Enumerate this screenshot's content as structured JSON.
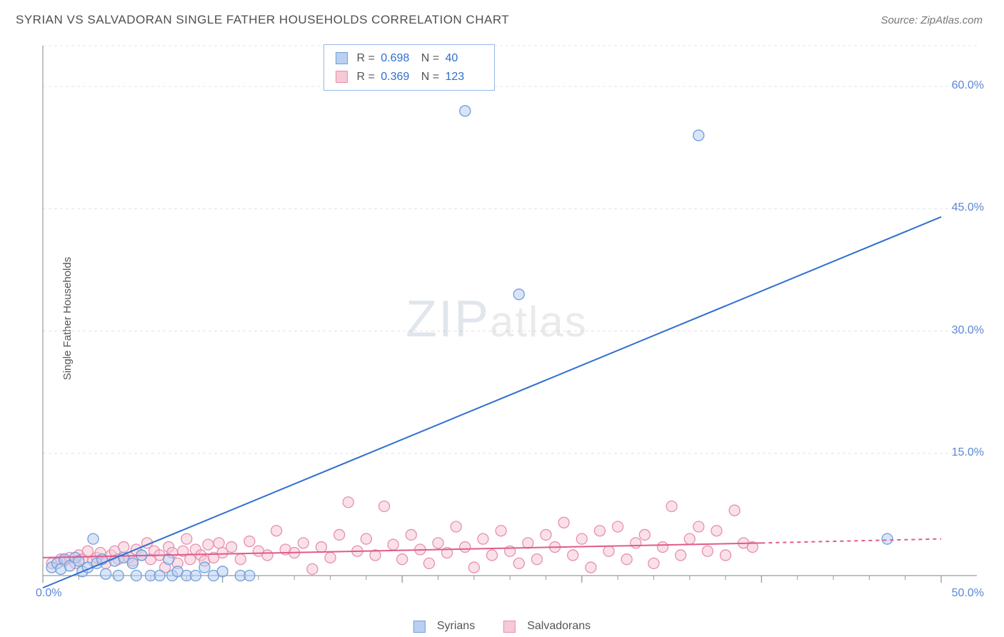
{
  "header": {
    "title": "SYRIAN VS SALVADORAN SINGLE FATHER HOUSEHOLDS CORRELATION CHART",
    "source": "Source: ZipAtlas.com"
  },
  "axes": {
    "ylabel": "Single Father Households",
    "xlim": [
      0,
      50
    ],
    "ylim": [
      0,
      65
    ],
    "ytick_values": [
      15,
      30,
      45,
      60
    ],
    "ytick_labels": [
      "15.0%",
      "30.0%",
      "45.0%",
      "60.0%"
    ],
    "xtick_values": [
      0,
      10,
      20,
      30,
      40,
      50
    ],
    "x_label_0": "0.0%",
    "x_label_50": "50.0%",
    "minor_xtick_step": 2
  },
  "styling": {
    "grid_color": "#e4e4e4",
    "axis_color": "#9a9a9a",
    "background": "#ffffff",
    "tick_label_color": "#5a87d6"
  },
  "series": {
    "syrians": {
      "label": "Syrians",
      "marker_fill": "#b9d0f0",
      "marker_stroke": "#6f9edb",
      "line_color": "#2f6fd0",
      "line_width": 2,
      "trend_start": [
        0,
        -1.5
      ],
      "trend_end": [
        50,
        44
      ],
      "dash_continue_end": [
        50,
        44
      ],
      "r_value": "0.698",
      "n_value": "40",
      "points": [
        [
          0.5,
          1.0
        ],
        [
          0.8,
          1.5
        ],
        [
          1.0,
          0.8
        ],
        [
          1.2,
          2.0
        ],
        [
          1.5,
          1.2
        ],
        [
          1.8,
          2.2
        ],
        [
          2.0,
          1.8
        ],
        [
          2.2,
          0.5
        ],
        [
          2.5,
          1.0
        ],
        [
          2.8,
          4.5
        ],
        [
          3.0,
          1.5
        ],
        [
          3.3,
          2.0
        ],
        [
          3.5,
          0.2
        ],
        [
          4.0,
          1.8
        ],
        [
          4.2,
          0.0
        ],
        [
          4.5,
          2.2
        ],
        [
          5.0,
          1.5
        ],
        [
          5.2,
          0.0
        ],
        [
          5.5,
          2.5
        ],
        [
          6.0,
          0.0
        ],
        [
          6.5,
          0.0
        ],
        [
          7.0,
          2.0
        ],
        [
          7.2,
          0.0
        ],
        [
          7.5,
          0.5
        ],
        [
          8.0,
          0.0
        ],
        [
          8.5,
          0.0
        ],
        [
          9.0,
          1.0
        ],
        [
          9.5,
          0.0
        ],
        [
          10.0,
          0.5
        ],
        [
          11.0,
          0.0
        ],
        [
          11.5,
          0.0
        ],
        [
          23.5,
          57.0
        ],
        [
          26.5,
          34.5
        ],
        [
          36.5,
          54.0
        ],
        [
          47.0,
          4.5
        ]
      ]
    },
    "salvadorans": {
      "label": "Salvadorans",
      "marker_fill": "#f6c9d6",
      "marker_stroke": "#e68fb0",
      "line_color": "#e05b8b",
      "line_width": 2,
      "trend_start": [
        0,
        2.2
      ],
      "trend_end": [
        40,
        4.0
      ],
      "dash_continue_end": [
        50,
        4.5
      ],
      "r_value": "0.369",
      "n_value": "123",
      "points": [
        [
          0.5,
          1.5
        ],
        [
          1.0,
          2.0
        ],
        [
          1.2,
          1.8
        ],
        [
          1.5,
          2.2
        ],
        [
          1.8,
          1.5
        ],
        [
          2.0,
          2.5
        ],
        [
          2.2,
          2.0
        ],
        [
          2.5,
          3.0
        ],
        [
          2.8,
          1.8
        ],
        [
          3.0,
          2.2
        ],
        [
          3.2,
          2.8
        ],
        [
          3.5,
          1.5
        ],
        [
          3.8,
          2.5
        ],
        [
          4.0,
          3.0
        ],
        [
          4.2,
          2.0
        ],
        [
          4.5,
          3.5
        ],
        [
          4.8,
          2.2
        ],
        [
          5.0,
          1.8
        ],
        [
          5.2,
          3.2
        ],
        [
          5.5,
          2.5
        ],
        [
          5.8,
          4.0
        ],
        [
          6.0,
          2.0
        ],
        [
          6.2,
          3.0
        ],
        [
          6.5,
          2.5
        ],
        [
          6.8,
          1.0
        ],
        [
          7.0,
          3.5
        ],
        [
          7.2,
          2.8
        ],
        [
          7.5,
          1.5
        ],
        [
          7.8,
          3.0
        ],
        [
          8.0,
          4.5
        ],
        [
          8.2,
          2.0
        ],
        [
          8.5,
          3.2
        ],
        [
          8.8,
          2.5
        ],
        [
          9.0,
          1.8
        ],
        [
          9.2,
          3.8
        ],
        [
          9.5,
          2.2
        ],
        [
          9.8,
          4.0
        ],
        [
          10.0,
          2.8
        ],
        [
          10.5,
          3.5
        ],
        [
          11.0,
          2.0
        ],
        [
          11.5,
          4.2
        ],
        [
          12.0,
          3.0
        ],
        [
          12.5,
          2.5
        ],
        [
          13.0,
          5.5
        ],
        [
          13.5,
          3.2
        ],
        [
          14.0,
          2.8
        ],
        [
          14.5,
          4.0
        ],
        [
          15.0,
          0.8
        ],
        [
          15.5,
          3.5
        ],
        [
          16.0,
          2.2
        ],
        [
          16.5,
          5.0
        ],
        [
          17.0,
          9.0
        ],
        [
          17.5,
          3.0
        ],
        [
          18.0,
          4.5
        ],
        [
          18.5,
          2.5
        ],
        [
          19.0,
          8.5
        ],
        [
          19.5,
          3.8
        ],
        [
          20.0,
          2.0
        ],
        [
          20.5,
          5.0
        ],
        [
          21.0,
          3.2
        ],
        [
          21.5,
          1.5
        ],
        [
          22.0,
          4.0
        ],
        [
          22.5,
          2.8
        ],
        [
          23.0,
          6.0
        ],
        [
          23.5,
          3.5
        ],
        [
          24.0,
          1.0
        ],
        [
          24.5,
          4.5
        ],
        [
          25.0,
          2.5
        ],
        [
          25.5,
          5.5
        ],
        [
          26.0,
          3.0
        ],
        [
          26.5,
          1.5
        ],
        [
          27.0,
          4.0
        ],
        [
          27.5,
          2.0
        ],
        [
          28.0,
          5.0
        ],
        [
          28.5,
          3.5
        ],
        [
          29.0,
          6.5
        ],
        [
          29.5,
          2.5
        ],
        [
          30.0,
          4.5
        ],
        [
          30.5,
          1.0
        ],
        [
          31.0,
          5.5
        ],
        [
          31.5,
          3.0
        ],
        [
          32.0,
          6.0
        ],
        [
          32.5,
          2.0
        ],
        [
          33.0,
          4.0
        ],
        [
          33.5,
          5.0
        ],
        [
          34.0,
          1.5
        ],
        [
          34.5,
          3.5
        ],
        [
          35.0,
          8.5
        ],
        [
          35.5,
          2.5
        ],
        [
          36.0,
          4.5
        ],
        [
          36.5,
          6.0
        ],
        [
          37.0,
          3.0
        ],
        [
          37.5,
          5.5
        ],
        [
          38.0,
          2.5
        ],
        [
          38.5,
          8.0
        ],
        [
          39.0,
          4.0
        ],
        [
          39.5,
          3.5
        ]
      ]
    }
  },
  "stats_box": {
    "r_label": "R =",
    "n_label": "N ="
  },
  "bottom_legend": {
    "syrians": "Syrians",
    "salvadorans": "Salvadorans"
  },
  "watermark": {
    "zip": "ZIP",
    "atlas": "atlas"
  }
}
